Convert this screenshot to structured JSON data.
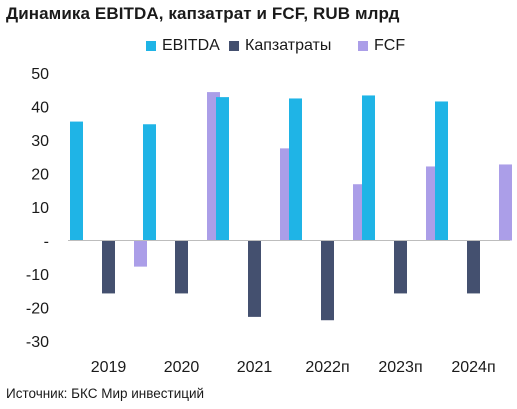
{
  "chart_data": {
    "type": "bar",
    "title": "Динамика EBITDA, капзатрат и FCF, RUB млрд",
    "categories": [
      "2019",
      "2020",
      "2021",
      "2022п",
      "2023п",
      "2024п"
    ],
    "series": [
      {
        "name": "EBITDA",
        "color": "#1fb4e6",
        "values": [
          35.5,
          34.7,
          42.8,
          42.4,
          43.3,
          41.5
        ]
      },
      {
        "name": "Капзатраты",
        "color": "#44506f",
        "values": [
          -15.8,
          -15.8,
          -22.8,
          -23.8,
          -15.8,
          -15.8
        ]
      },
      {
        "name": "FCF",
        "color": "#ab9ee8",
        "values": [
          -7.8,
          44.3,
          27.5,
          16.8,
          22.1,
          22.7
        ]
      }
    ],
    "y_ticks": [
      "50",
      "40",
      "30",
      "20",
      "10",
      "-",
      "-10",
      "-20",
      "-30"
    ],
    "y_tick_values": [
      50,
      40,
      30,
      20,
      10,
      0,
      -10,
      -20,
      -30
    ],
    "ylim": [
      -30,
      50
    ],
    "grid": false,
    "legend_position": "top-center",
    "xlabel": "",
    "ylabel": ""
  },
  "source": "Источник: БКС Мир инвестиций"
}
